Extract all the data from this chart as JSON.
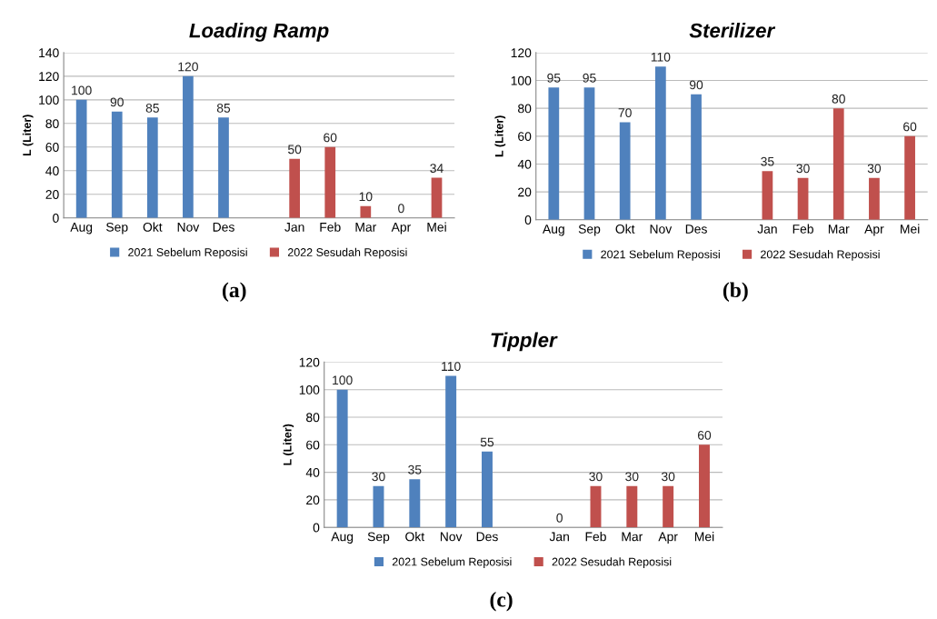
{
  "chart_data": [
    {
      "type": "bar",
      "title": "Loading Ramp",
      "ylabel": "L (Liter)",
      "categories": [
        "Aug",
        "Sep",
        "Okt",
        "Nov",
        "Des",
        null,
        "Jan",
        "Feb",
        "Mar",
        "Apr",
        "Mei"
      ],
      "series": [
        {
          "name": "2021 Sebelum Reposisi",
          "color": "#4f81bd",
          "values": [
            100,
            90,
            85,
            120,
            85,
            null,
            null,
            null,
            null,
            null,
            null
          ]
        },
        {
          "name": "2022 Sesudah Reposisi",
          "color": "#c0504d",
          "values": [
            null,
            null,
            null,
            null,
            null,
            null,
            50,
            60,
            10,
            0,
            34
          ]
        }
      ],
      "ylim": [
        0,
        140
      ],
      "yticks": [
        0,
        20,
        40,
        60,
        80,
        100,
        120,
        140
      ],
      "grid": "y",
      "legend": "bottom",
      "data_labels": true,
      "annotations": [
        "(a)"
      ]
    },
    {
      "type": "bar",
      "title": "Sterilizer",
      "ylabel": "L (Liter)",
      "categories": [
        "Aug",
        "Sep",
        "Okt",
        "Nov",
        "Des",
        null,
        "Jan",
        "Feb",
        "Mar",
        "Apr",
        "Mei"
      ],
      "series": [
        {
          "name": "2021 Sebelum Reposisi",
          "color": "#4f81bd",
          "values": [
            95,
            95,
            70,
            110,
            90,
            null,
            null,
            null,
            null,
            null,
            null
          ]
        },
        {
          "name": "2022 Sesudah Reposisi",
          "color": "#c0504d",
          "values": [
            null,
            null,
            null,
            null,
            null,
            null,
            35,
            30,
            80,
            30,
            60
          ]
        }
      ],
      "ylim": [
        0,
        120
      ],
      "yticks": [
        0,
        20,
        40,
        60,
        80,
        100,
        120
      ],
      "grid": "y",
      "legend": "bottom",
      "data_labels": true,
      "annotations": [
        "(b)"
      ]
    },
    {
      "type": "bar",
      "title": "Tippler",
      "ylabel": "L (Liter)",
      "categories": [
        "Aug",
        "Sep",
        "Okt",
        "Nov",
        "Des",
        null,
        "Jan",
        "Feb",
        "Mar",
        "Apr",
        "Mei"
      ],
      "series": [
        {
          "name": "2021 Sebelum Reposisi",
          "color": "#4f81bd",
          "values": [
            100,
            30,
            35,
            110,
            55,
            null,
            null,
            null,
            null,
            null,
            null
          ]
        },
        {
          "name": "2022 Sesudah Reposisi",
          "color": "#c0504d",
          "values": [
            null,
            null,
            null,
            null,
            null,
            null,
            0,
            30,
            30,
            30,
            60
          ]
        }
      ],
      "ylim": [
        0,
        120
      ],
      "yticks": [
        0,
        20,
        40,
        60,
        80,
        100,
        120
      ],
      "grid": "y",
      "legend": "bottom",
      "data_labels": true,
      "annotations": [
        "(c)"
      ]
    }
  ]
}
